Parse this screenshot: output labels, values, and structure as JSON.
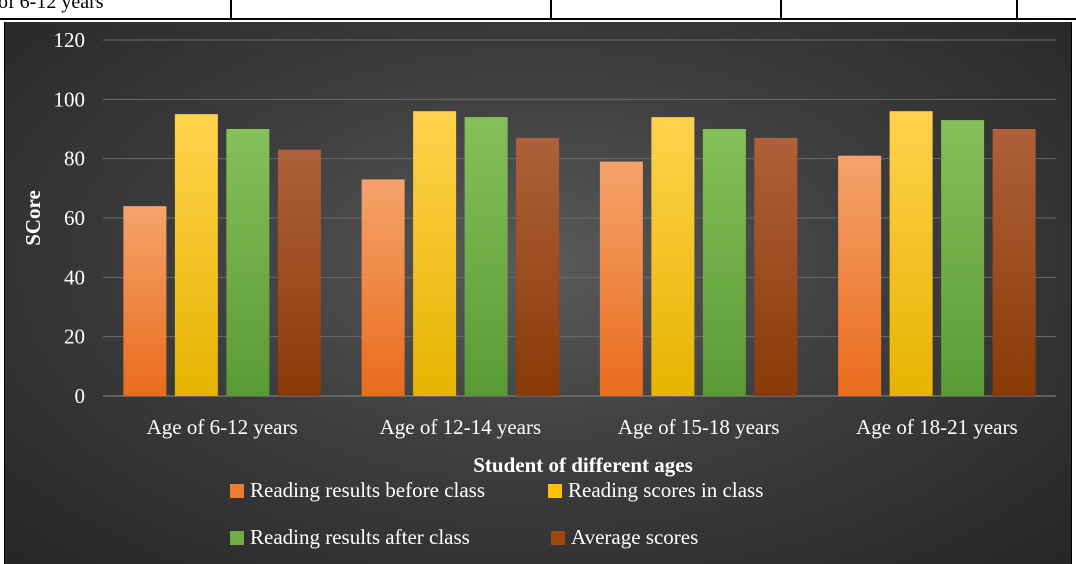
{
  "top_strip": {
    "cells": [
      "of 6-12 years",
      "",
      "",
      "",
      ""
    ]
  },
  "chart_data": {
    "type": "bar",
    "title": "",
    "xlabel": "Student of different ages",
    "ylabel": "SCore",
    "ylim": [
      0,
      120
    ],
    "yticks": [
      0,
      20,
      40,
      60,
      80,
      100,
      120
    ],
    "grid": true,
    "legend_placement": "bottom",
    "categories": [
      "Age of 6-12 years",
      "Age of 12-14 years",
      "Age of 15-18 years",
      "Age of 18-21 years"
    ],
    "series": [
      {
        "name": "Reading results before class",
        "values": [
          64,
          73,
          79,
          81
        ],
        "color": "#ed7d31"
      },
      {
        "name": "Reading scores in class",
        "values": [
          95,
          96,
          94,
          96
        ],
        "color": "#ffc000"
      },
      {
        "name": "Reading results after class",
        "values": [
          90,
          94,
          90,
          93
        ],
        "color": "#70ad47"
      },
      {
        "name": "Average scores",
        "values": [
          83,
          87,
          87,
          90
        ],
        "color": "#9e480e"
      }
    ]
  },
  "colors": {
    "background_dark": "#262626",
    "background_mid": "#5a5a5a",
    "gridline": "#6a6a6a",
    "text": "#ffffff"
  }
}
